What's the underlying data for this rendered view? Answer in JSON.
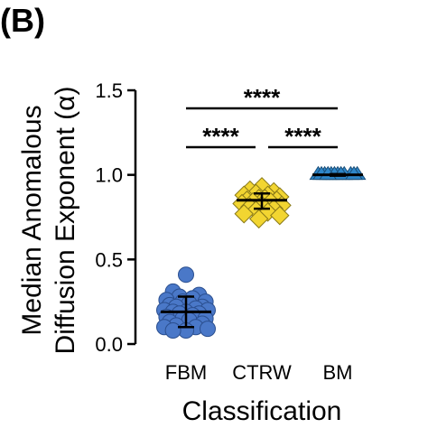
{
  "panel_label": "(B)",
  "chart_data": {
    "type": "scatter",
    "title": "",
    "xlabel": "Classification",
    "ylabel": [
      "Median Anomalous",
      "Diffusion Exponent (α)"
    ],
    "categories": [
      "FBM",
      "CTRW",
      "BM"
    ],
    "ylim": [
      0,
      1.5
    ],
    "yticks": [
      "0.0",
      "0.5",
      "1.0",
      "1.5"
    ],
    "grid": false,
    "legend": "none",
    "series": [
      {
        "category": "FBM",
        "marker": "circle",
        "color": "#4a78c8",
        "median": 0.19,
        "error": [
          0.1,
          0.28
        ],
        "points": [
          0.41,
          0.31,
          0.29,
          0.28,
          0.27,
          0.26,
          0.25,
          0.25,
          0.24,
          0.23,
          0.22,
          0.22,
          0.21,
          0.2,
          0.2,
          0.19,
          0.19,
          0.18,
          0.18,
          0.17,
          0.16,
          0.15,
          0.15,
          0.14,
          0.13,
          0.12,
          0.11,
          0.1,
          0.1,
          0.09,
          0.08,
          0.08
        ]
      },
      {
        "category": "CTRW",
        "marker": "diamond",
        "color": "#f2d531",
        "median": 0.85,
        "error": [
          0.8,
          0.89
        ],
        "points": [
          0.93,
          0.91,
          0.9,
          0.89,
          0.88,
          0.88,
          0.87,
          0.86,
          0.86,
          0.85,
          0.85,
          0.84,
          0.84,
          0.83,
          0.82,
          0.82,
          0.81,
          0.8,
          0.79,
          0.78,
          0.77,
          0.76,
          0.74
        ]
      },
      {
        "category": "BM",
        "marker": "triangle",
        "color": "#2e86c8",
        "median": 1.0,
        "error": [
          0.995,
          1.005
        ],
        "points": [
          1.0,
          1.0,
          1.0,
          1.0,
          1.0,
          1.0,
          1.0,
          1.0,
          1.0,
          1.0,
          1.0,
          1.0
        ]
      }
    ],
    "significance": [
      {
        "from": "FBM",
        "to": "BM",
        "label": "****"
      },
      {
        "from": "FBM",
        "to": "CTRW",
        "label": "****"
      },
      {
        "from": "CTRW",
        "to": "BM",
        "label": "****"
      }
    ]
  }
}
